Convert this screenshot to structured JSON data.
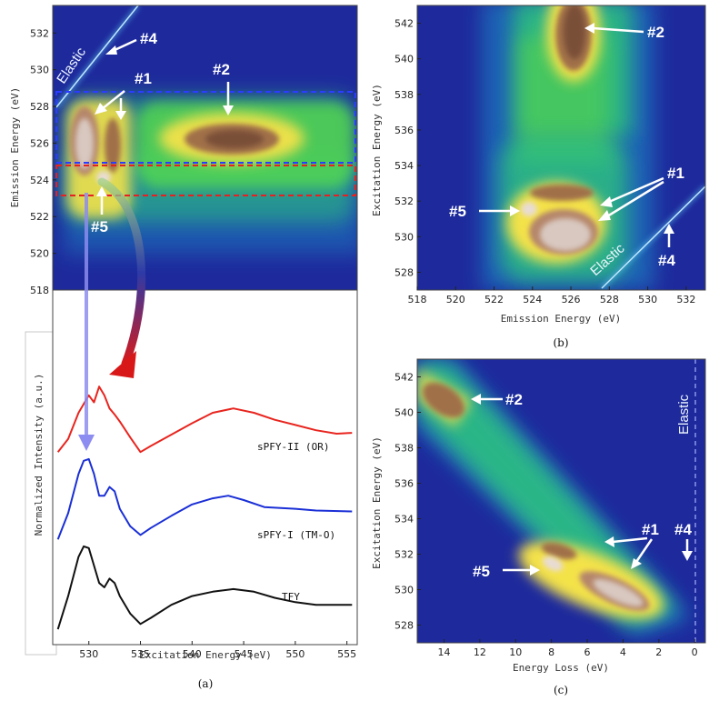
{
  "chart_data": [
    {
      "panel": "a-top",
      "type": "heatmap",
      "ylabel": "Emission Energy (eV)",
      "yticks": [
        518,
        520,
        522,
        524,
        526,
        528,
        530,
        532
      ],
      "ylim": [
        518,
        533.5
      ],
      "xlim": [
        526.5,
        556
      ],
      "annotations": [
        "#1",
        "#2",
        "#4",
        "#5",
        "Elastic"
      ]
    },
    {
      "panel": "a-bottom",
      "type": "line",
      "xlabel": "Excitation Energy (eV)",
      "ylabel": "Normalized Intensity (a.u.)",
      "xticks": [
        530,
        535,
        540,
        545,
        550,
        555
      ],
      "xlim": [
        526.5,
        556
      ],
      "series": [
        {
          "name": "sPFY-II (OR)",
          "color": "#e8251f",
          "offset": 2.0,
          "x": [
            527,
            528,
            529,
            530,
            530.5,
            531,
            531.5,
            532,
            532.5,
            533,
            534,
            535,
            536,
            538,
            540,
            542,
            544,
            546,
            548,
            550,
            552,
            554,
            555.5
          ],
          "y": [
            0.05,
            0.2,
            0.5,
            0.7,
            0.62,
            0.8,
            0.7,
            0.55,
            0.48,
            0.4,
            0.22,
            0.05,
            0.12,
            0.25,
            0.38,
            0.5,
            0.55,
            0.5,
            0.42,
            0.36,
            0.3,
            0.26,
            0.27
          ]
        },
        {
          "name": "sPFY-I (TM-O)",
          "color": "#1a2fd6",
          "offset": 1.0,
          "x": [
            527,
            528,
            529,
            529.5,
            530,
            530.5,
            531,
            531.5,
            532,
            532.5,
            533,
            534,
            535,
            536,
            538,
            540,
            542,
            543.5,
            545,
            547,
            550,
            552,
            555.5
          ],
          "y": [
            0.05,
            0.35,
            0.8,
            0.95,
            0.97,
            0.8,
            0.55,
            0.55,
            0.65,
            0.6,
            0.4,
            0.2,
            0.1,
            0.18,
            0.32,
            0.45,
            0.52,
            0.55,
            0.5,
            0.42,
            0.4,
            0.38,
            0.37
          ]
        },
        {
          "name": "TFY",
          "color": "#111111",
          "offset": 0.0,
          "x": [
            527,
            528,
            529,
            529.5,
            530,
            530.5,
            531,
            531.5,
            532,
            532.5,
            533,
            534,
            535,
            536,
            538,
            540,
            542,
            544,
            546,
            548,
            550,
            552,
            555.5
          ],
          "y": [
            0.02,
            0.4,
            0.85,
            0.97,
            0.95,
            0.75,
            0.55,
            0.5,
            0.6,
            0.55,
            0.4,
            0.2,
            0.08,
            0.15,
            0.3,
            0.4,
            0.45,
            0.48,
            0.45,
            0.38,
            0.33,
            0.3,
            0.3
          ]
        }
      ]
    },
    {
      "panel": "b",
      "type": "heatmap",
      "xlabel": "Emission Energy (eV)",
      "ylabel": "Excitation Energy (eV)",
      "xticks": [
        518,
        520,
        522,
        524,
        526,
        528,
        530,
        532
      ],
      "yticks": [
        528,
        530,
        532,
        534,
        536,
        538,
        540,
        542
      ],
      "xlim": [
        518,
        533
      ],
      "ylim": [
        527,
        543
      ],
      "annotations": [
        "#1",
        "#2",
        "#4",
        "#5",
        "Elastic"
      ]
    },
    {
      "panel": "c",
      "type": "heatmap",
      "xlabel": "Energy Loss (eV)",
      "ylabel": "Excitation Energy (eV)",
      "xticks": [
        14,
        12,
        10,
        8,
        6,
        4,
        2,
        0
      ],
      "yticks": [
        528,
        530,
        532,
        534,
        536,
        538,
        540,
        542
      ],
      "xlim": [
        15.5,
        -0.6
      ],
      "ylim": [
        527,
        543
      ],
      "annotations": [
        "#1",
        "#2",
        "#4",
        "#5",
        "Elastic"
      ]
    }
  ],
  "captions": {
    "a": "(a)",
    "b": "(b)",
    "c": "(c)"
  },
  "labels": {
    "elastic": "Elastic",
    "n1": "#1",
    "n2": "#2",
    "n4": "#4",
    "n5": "#5",
    "a_ylabel_top": "Emission Energy (eV)",
    "a_ylabel_bottom": "Normalized Intensity (a.u.)",
    "a_xlabel": "Excitation Energy (eV)",
    "b_xlabel": "Emission Energy (eV)",
    "b_ylabel": "Excitation Energy (eV)",
    "c_xlabel": "Energy Loss (eV)",
    "c_ylabel": "Excitation Energy (eV)"
  },
  "colors": {
    "background": "#1e2a9c",
    "sPFY-II": "#e8251f",
    "sPFY-I": "#1a2fd6",
    "TFY": "#111111",
    "box_blue": "#2a3cff",
    "box_red": "#e82020"
  }
}
